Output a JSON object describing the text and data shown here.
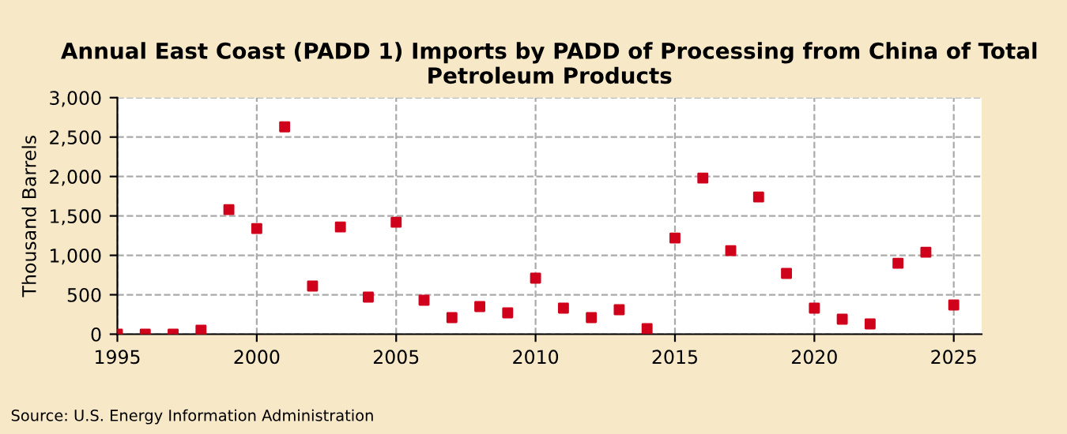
{
  "chart_data": {
    "type": "scatter",
    "title": "Annual East Coast (PADD 1) Imports by PADD of Processing from China of Total Petroleum Products",
    "ylabel": "Thousand Barrels",
    "x": [
      1995,
      1996,
      1997,
      1998,
      1999,
      2000,
      2001,
      2002,
      2003,
      2004,
      2005,
      2006,
      2007,
      2008,
      2009,
      2010,
      2011,
      2012,
      2013,
      2014,
      2015,
      2016,
      2017,
      2018,
      2019,
      2020,
      2021,
      2022,
      2023,
      2024,
      2025
    ],
    "series": [
      {
        "color": "#d0021b",
        "values": [
          0,
          0,
          0,
          50,
          1580,
          1340,
          2630,
          610,
          1360,
          470,
          1420,
          430,
          210,
          350,
          270,
          710,
          330,
          210,
          310,
          70,
          1220,
          1980,
          1060,
          1740,
          770,
          330,
          190,
          130,
          900,
          1040,
          370
        ]
      }
    ],
    "xlim": [
      1995,
      2026
    ],
    "xticks": [
      1995,
      2000,
      2005,
      2010,
      2015,
      2020,
      2025
    ],
    "ylim": [
      0,
      3000
    ],
    "yticks": [
      {
        "value": 0,
        "label": "0"
      },
      {
        "value": 500,
        "label": "500"
      },
      {
        "value": 1000,
        "label": "1,000"
      },
      {
        "value": 1500,
        "label": "1,500"
      },
      {
        "value": 2000,
        "label": "2,000"
      },
      {
        "value": 2500,
        "label": "2,500"
      },
      {
        "value": 3000,
        "label": "3,000"
      }
    ],
    "grid": true,
    "marker": "square",
    "legend": false,
    "annotations": [
      "Source: U.S. Energy Information Administration"
    ]
  }
}
